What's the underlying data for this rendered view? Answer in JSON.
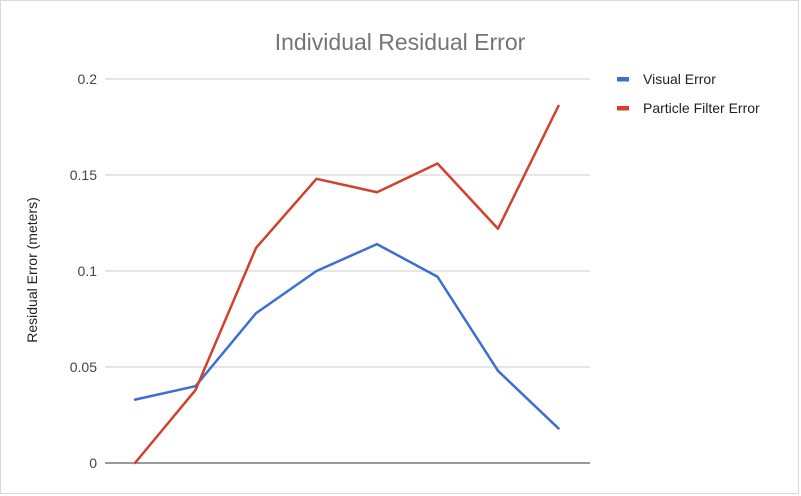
{
  "chart_data": {
    "type": "line",
    "title": "Individual Residual Error",
    "xlabel": "",
    "ylabel": "Residual Error (meters)",
    "x": [
      1,
      2,
      3,
      4,
      5,
      6,
      7,
      8
    ],
    "ylim": [
      0,
      0.2
    ],
    "yticks": [
      0,
      0.05,
      0.1,
      0.15,
      0.2
    ],
    "ytick_labels": [
      "0",
      "0.05",
      "0.1",
      "0.15",
      "0.2"
    ],
    "grid": true,
    "legend_position": "right",
    "series": [
      {
        "name": "Visual Error",
        "color": "#3c6fd1",
        "values": [
          0.033,
          0.04,
          0.078,
          0.1,
          0.114,
          0.097,
          0.048,
          0.018
        ]
      },
      {
        "name": "Particle Filter Error",
        "color": "#d2412b",
        "values": [
          0.0,
          0.038,
          0.112,
          0.148,
          0.141,
          0.156,
          0.122,
          0.186
        ]
      }
    ]
  }
}
